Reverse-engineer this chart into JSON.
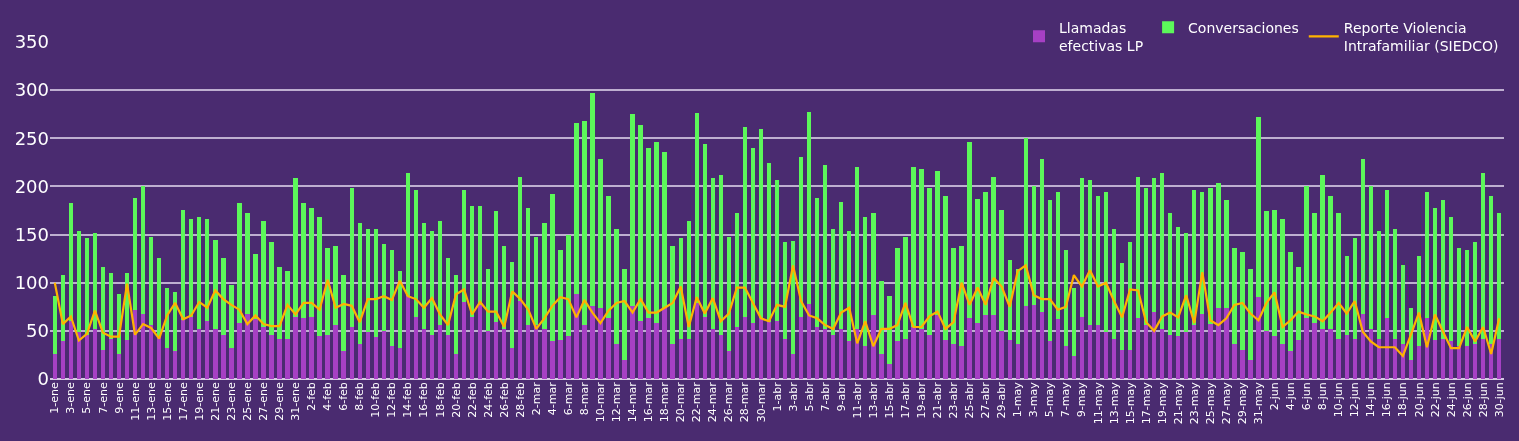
{
  "chart_data": {
    "type": "bar",
    "stacked": true,
    "categories": [
      "1-ene",
      null,
      "3-ene",
      null,
      "5-ene",
      null,
      "7-ene",
      null,
      "9-ene",
      null,
      "11-ene",
      null,
      "13-ene",
      null,
      "15-ene",
      null,
      "17-ene",
      null,
      "19-ene",
      null,
      "21-ene",
      null,
      "23-ene",
      null,
      "25-ene",
      null,
      "27-ene",
      null,
      "29-ene",
      null,
      "31-ene",
      null,
      "2-feb",
      null,
      "4-feb",
      null,
      "6-feb",
      null,
      "8-feb",
      null,
      "10-feb",
      null,
      "12-feb",
      null,
      "14-feb",
      null,
      "16-feb",
      null,
      "18-feb",
      null,
      "20-feb",
      null,
      "22-feb",
      null,
      "24-feb",
      null,
      "26-feb",
      null,
      "28-feb",
      null,
      "2-mar",
      null,
      "4-mar",
      null,
      "6-mar",
      null,
      "8-mar",
      null,
      "10-mar",
      null,
      "12-mar",
      null,
      "14-mar",
      null,
      "16-mar",
      null,
      "18-mar",
      null,
      "20-mar",
      null,
      "22-mar",
      null,
      "24-mar",
      null,
      "26-mar",
      null,
      "28-mar",
      null,
      "30-mar",
      null,
      "1-abr",
      null,
      "3-abr",
      null,
      "5-abr",
      null,
      "7-abr",
      null,
      "9-abr",
      null,
      "11-abr",
      null,
      "13-abr",
      null,
      "15-abr",
      null,
      "17-abr",
      null,
      "19-abr",
      null,
      "21-abr",
      null,
      "23-abr",
      null,
      "25-abr",
      null,
      "27-abr",
      null,
      "29-abr",
      null,
      "1-may",
      null,
      "3-may",
      null,
      "5-may",
      null,
      "7-may",
      null,
      "9-may",
      null,
      "11-may",
      null,
      "13-may",
      null,
      "15-may",
      null,
      "17-may",
      null,
      "19-may",
      null,
      "21-may",
      null,
      "23-may",
      null,
      "25-may",
      null,
      "27-may",
      null,
      "29-may",
      null,
      "31-may",
      null,
      "2-jun",
      null,
      "4-jun",
      null,
      "6-jun",
      null,
      "8-jun",
      null,
      "10-jun",
      null,
      "12-jun",
      null,
      "14-jun",
      null,
      "16-jun",
      null,
      "18-jun",
      null,
      "20-jun",
      null,
      "22-jun",
      null,
      "24-jun",
      null,
      "26-jun",
      null,
      "28-jun",
      null,
      "30-jun"
    ],
    "series": [
      {
        "name": "Llamadas efectivas LP",
        "color": "#a640c4",
        "values": [
          26,
          39,
          60,
          49,
          46,
          52,
          30,
          42,
          26,
          41,
          72,
          68,
          56,
          44,
          32,
          29,
          61,
          64,
          52,
          60,
          52,
          46,
          32,
          58,
          68,
          62,
          54,
          46,
          42,
          42,
          64,
          63,
          64,
          45,
          46,
          56,
          29,
          54,
          36,
          49,
          44,
          50,
          34,
          32,
          86,
          64,
          52,
          46,
          56,
          46,
          26,
          80,
          64,
          77,
          50,
          59,
          52,
          32,
          81,
          56,
          56,
          52,
          39,
          41,
          45,
          88,
          56,
          76,
          74,
          63,
          36,
          20,
          76,
          60,
          63,
          58,
          74,
          36,
          42,
          42,
          79,
          64,
          52,
          46,
          29,
          54,
          64,
          58,
          63,
          59,
          60,
          42,
          26,
          64,
          78,
          54,
          52,
          46,
          52,
          39,
          52,
          34,
          66,
          26,
          16,
          39,
          42,
          54,
          52,
          46,
          66,
          41,
          36,
          34,
          63,
          58,
          66,
          66,
          50,
          41,
          36,
          76,
          77,
          70,
          39,
          62,
          34,
          24,
          64,
          56,
          56,
          49,
          42,
          30,
          30,
          63,
          56,
          70,
          52,
          46,
          45,
          49,
          56,
          68,
          57,
          74,
          74,
          36,
          30,
          20,
          85,
          50,
          45,
          36,
          29,
          41,
          63,
          58,
          52,
          52,
          42,
          46,
          42,
          68,
          52,
          42,
          63,
          42,
          36,
          20,
          34,
          63,
          41,
          42,
          39,
          34,
          34,
          36,
          42,
          36,
          42
        ]
      },
      {
        "name": "Conversaciones",
        "color": "#5cf75a",
        "values": [
          60,
          69,
          123,
          105,
          100,
          100,
          86,
          68,
          62,
          69,
          116,
          132,
          92,
          82,
          62,
          61,
          115,
          102,
          116,
          106,
          92,
          80,
          66,
          125,
          104,
          68,
          110,
          96,
          74,
          70,
          145,
          120,
          114,
          123,
          90,
          82,
          79,
          144,
          126,
          107,
          112,
          90,
          100,
          80,
          128,
          132,
          110,
          108,
          108,
          80,
          82,
          116,
          116,
          103,
          64,
          115,
          86,
          90,
          129,
          122,
          92,
          110,
          153,
          93,
          105,
          178,
          212,
          221,
          154,
          127,
          120,
          94,
          199,
          204,
          177,
          188,
          162,
          102,
          104,
          122,
          197,
          180,
          157,
          166,
          119,
          118,
          198,
          182,
          197,
          165,
          147,
          100,
          117,
          167,
          199,
          134,
          170,
          110,
          132,
          115,
          168,
          134,
          106,
          76,
          70,
          97,
          106,
          166,
          166,
          152,
          150,
          149,
          100,
          104,
          183,
          129,
          128,
          144,
          126,
          83,
          78,
          174,
          123,
          158,
          147,
          132,
          100,
          70,
          145,
          151,
          134,
          145,
          114,
          90,
          112,
          147,
          142,
          139,
          162,
          126,
          113,
          103,
          140,
          126,
          141,
          130,
          112,
          100,
          102,
          94,
          187,
          124,
          131,
          130,
          103,
          75,
          137,
          114,
          160,
          138,
          130,
          82,
          104,
          160,
          148,
          112,
          133,
          114,
          82,
          54,
          94,
          131,
          137,
          144,
          129,
          102,
          100,
          106,
          172,
          154,
          130
        ]
      },
      {
        "name": "Reporte Violencia Intrafamiliar (SIEDCO)",
        "type": "line",
        "color": "#ffb300",
        "values": [
          100,
          57,
          65,
          40,
          47,
          71,
          48,
          44,
          44,
          99,
          46,
          57,
          53,
          42,
          66,
          79,
          62,
          66,
          80,
          74,
          92,
          83,
          77,
          72,
          57,
          66,
          57,
          55,
          55,
          77,
          67,
          79,
          79,
          72,
          103,
          74,
          78,
          76,
          59,
          83,
          83,
          86,
          82,
          102,
          86,
          83,
          74,
          84,
          67,
          56,
          88,
          93,
          67,
          80,
          70,
          70,
          54,
          91,
          83,
          72,
          52,
          63,
          76,
          85,
          83,
          64,
          82,
          69,
          58,
          71,
          79,
          81,
          69,
          83,
          69,
          69,
          74,
          79,
          96,
          54,
          85,
          68,
          84,
          60,
          68,
          95,
          95,
          79,
          63,
          60,
          77,
          75,
          118,
          81,
          66,
          63,
          56,
          52,
          69,
          74,
          37,
          60,
          34,
          52,
          52,
          56,
          79,
          54,
          54,
          65,
          70,
          52,
          59,
          100,
          77,
          95,
          77,
          105,
          96,
          75,
          112,
          118,
          87,
          83,
          83,
          72,
          75,
          108,
          96,
          113,
          96,
          100,
          81,
          64,
          93,
          92,
          59,
          50,
          65,
          69,
          64,
          87,
          58,
          111,
          61,
          56,
          63,
          77,
          79,
          68,
          61,
          79,
          90,
          54,
          61,
          70,
          67,
          65,
          60,
          69,
          79,
          68,
          81,
          49,
          39,
          33,
          33,
          33,
          24,
          46,
          69,
          33,
          67,
          49,
          32,
          32,
          54,
          39,
          54,
          26,
          63
        ]
      }
    ],
    "ylim": [
      0,
      350
    ],
    "yticks": [
      0,
      50,
      100,
      150,
      200,
      250,
      300,
      350
    ],
    "grid": "y",
    "legend": "top right"
  }
}
